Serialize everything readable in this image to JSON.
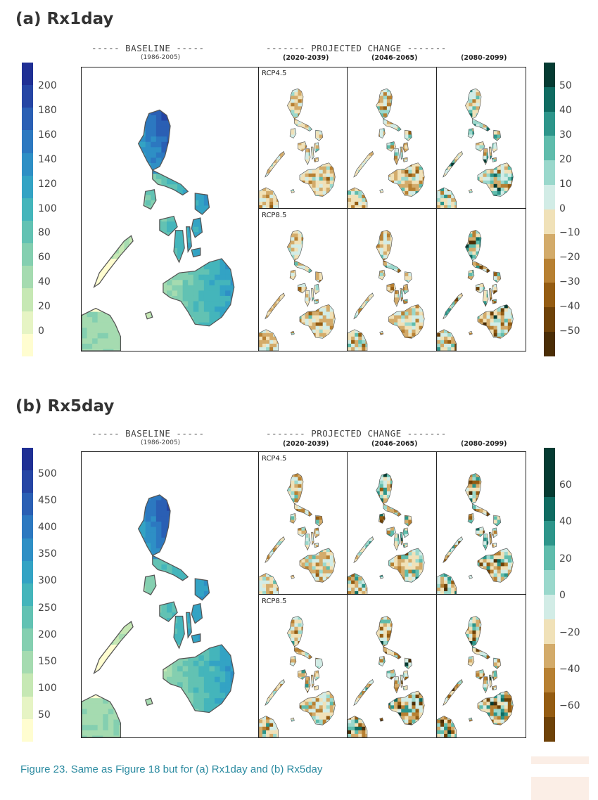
{
  "panels": {
    "a": {
      "title": "(a) Rx1day",
      "baseline_header": "----- BASELINE -----",
      "baseline_period": "(1986-2005)",
      "change_header": "------- PROJECTED CHANGE -------",
      "periods": [
        "(2020-2039)",
        "(2046-2065)",
        "(2080-2099)"
      ],
      "scenarios": [
        "RCP4.5",
        "RCP8.5"
      ],
      "baseline_ticks": [
        "200",
        "180",
        "160",
        "140",
        "120",
        "100",
        "80",
        "60",
        "40",
        "20",
        "0"
      ],
      "change_ticks": [
        "50",
        "40",
        "30",
        "20",
        "10",
        "0",
        "−10",
        "−20",
        "−30",
        "−40",
        "−50"
      ]
    },
    "b": {
      "title": "(b) Rx5day",
      "baseline_header": "----- BASELINE -----",
      "baseline_period": "(1986-2005)",
      "change_header": "------- PROJECTED CHANGE -------",
      "periods": [
        "(2020-2039)",
        "(2046-2065)",
        "(2080-2099)"
      ],
      "scenarios": [
        "RCP4.5",
        "RCP8.5"
      ],
      "baseline_ticks": [
        "500",
        "450",
        "400",
        "350",
        "300",
        "250",
        "200",
        "150",
        "100",
        "50"
      ],
      "change_ticks": [
        "60",
        "40",
        "20",
        "0",
        "−20",
        "−40",
        "−60"
      ]
    }
  },
  "colors": {
    "baseline_scale": [
      "#fffdd0",
      "#e6f4c4",
      "#c6e8b4",
      "#a5dbb0",
      "#84cfb0",
      "#62c2b3",
      "#44b5bb",
      "#33a3c4",
      "#2e8fc5",
      "#2c78c0",
      "#2a5fb4",
      "#2545a4",
      "#1f2f94"
    ],
    "change_scale": [
      "#4a2d06",
      "#6e4208",
      "#945c12",
      "#b78032",
      "#d3ab6a",
      "#f0e1b8",
      "#d2ece6",
      "#9ad8cc",
      "#5fbcac",
      "#2d958a",
      "#0f6b61",
      "#053b32"
    ],
    "caption": "#2a8aa0"
  },
  "caption": "Figure 23. Same as Figure 18 but for (a) Rx1day and (b) Rx5day",
  "chart_data": [
    {
      "type": "heatmap",
      "title": "(a) Rx1day",
      "baseline": "(1986-2005)",
      "periods": [
        "(2020-2039)",
        "(2046-2065)",
        "(2080-2099)"
      ],
      "scenarios": [
        "RCP4.5",
        "RCP8.5"
      ],
      "baseline_colorbar": {
        "min": 0,
        "max": 200,
        "step": 20
      },
      "change_colorbar": {
        "min": -50,
        "max": 50,
        "step": 10
      }
    },
    {
      "type": "heatmap",
      "title": "(b) Rx5day",
      "baseline": "(1986-2005)",
      "periods": [
        "(2020-2039)",
        "(2046-2065)",
        "(2080-2099)"
      ],
      "scenarios": [
        "RCP4.5",
        "RCP8.5"
      ],
      "baseline_colorbar": {
        "min": 50,
        "max": 500,
        "step": 50
      },
      "change_colorbar": {
        "min": -60,
        "max": 60,
        "step": 20
      }
    }
  ]
}
